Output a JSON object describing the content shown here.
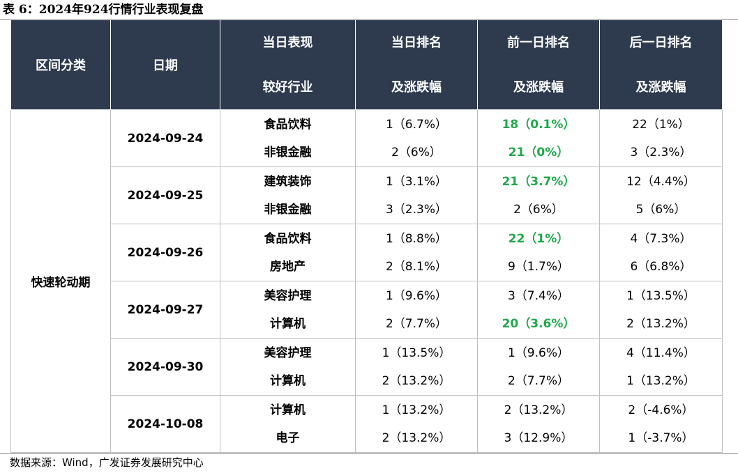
{
  "caption": "表 6：2024年924行情行业表现复盘",
  "header": {
    "category": "区间分类",
    "date": "日期",
    "industry_top": "当日表现",
    "industry_bottom": "较好行业",
    "same_day_top": "当日排名",
    "same_day_bottom": "及涨跌幅",
    "prev_day_top": "前一日排名",
    "prev_day_bottom": "及涨跌幅",
    "next_day_top": "后一日排名",
    "next_day_bottom": "及涨跌幅"
  },
  "category": "快速轮动期",
  "highlight_color": "#1fa84a",
  "rows": [
    {
      "date": "2024-09-24",
      "items": [
        {
          "industry": "食品饮料",
          "same_day": "1（6.7%）",
          "prev_day": "18（0.1%）",
          "prev_highlight": true,
          "next_day": "22（1%）"
        },
        {
          "industry": "非银金融",
          "same_day": "2（6%）",
          "prev_day": "21（0%）",
          "prev_highlight": true,
          "next_day": "3（2.3%）"
        }
      ]
    },
    {
      "date": "2024-09-25",
      "items": [
        {
          "industry": "建筑装饰",
          "same_day": "1（3.1%）",
          "prev_day": "21（3.7%）",
          "prev_highlight": true,
          "next_day": "12（4.4%）"
        },
        {
          "industry": "非银金融",
          "same_day": "3（2.3%）",
          "prev_day": "2（6%）",
          "prev_highlight": false,
          "next_day": "5（6%）"
        }
      ]
    },
    {
      "date": "2024-09-26",
      "items": [
        {
          "industry": "食品饮料",
          "same_day": "1（8.8%）",
          "prev_day": "22（1%）",
          "prev_highlight": true,
          "next_day": "4（7.3%）"
        },
        {
          "industry": "房地产",
          "same_day": "2（8.1%）",
          "prev_day": "9（1.7%）",
          "prev_highlight": false,
          "next_day": "6（6.8%）"
        }
      ]
    },
    {
      "date": "2024-09-27",
      "items": [
        {
          "industry": "美容护理",
          "same_day": "1（9.6%）",
          "prev_day": "3（7.4%）",
          "prev_highlight": false,
          "next_day": "1（13.5%）"
        },
        {
          "industry": "计算机",
          "same_day": "2（7.7%）",
          "prev_day": "20（3.6%）",
          "prev_highlight": true,
          "next_day": "2（13.2%）"
        }
      ]
    },
    {
      "date": "2024-09-30",
      "items": [
        {
          "industry": "美容护理",
          "same_day": "1（13.5%）",
          "prev_day": "1（9.6%）",
          "prev_highlight": false,
          "next_day": "4（11.4%）"
        },
        {
          "industry": "计算机",
          "same_day": "2（13.2%）",
          "prev_day": "2（7.7%）",
          "prev_highlight": false,
          "next_day": "1（13.2%）"
        }
      ]
    },
    {
      "date": "2024-10-08",
      "items": [
        {
          "industry": "计算机",
          "same_day": "1（13.2%）",
          "prev_day": "2（13.2%）",
          "prev_highlight": false,
          "next_day": "2（-4.6%）"
        },
        {
          "industry": "电子",
          "same_day": "2（13.2%）",
          "prev_day": "3（12.9%）",
          "prev_highlight": false,
          "next_day": "1（-3.7%）"
        }
      ]
    }
  ],
  "footer": "数据来源：Wind，广发证券发展研究中心"
}
